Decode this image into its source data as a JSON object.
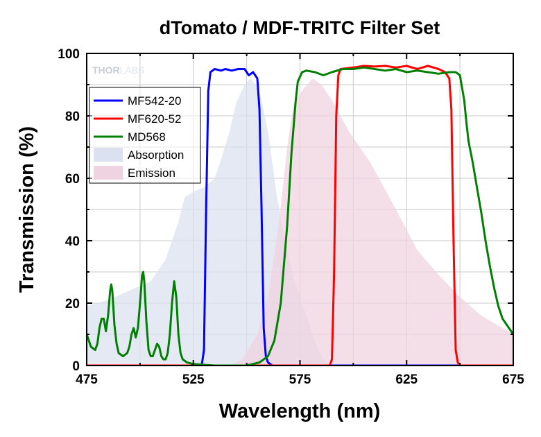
{
  "brand": {
    "thor": "THOR",
    "labs": "LABS"
  },
  "chart_data": {
    "type": "line",
    "title": "dTomato / MDF-TRITC Filter Set",
    "xlabel": "Wavelength (nm)",
    "ylabel": "Transmission (%)",
    "xlim": [
      475,
      675
    ],
    "ylim": [
      0,
      100
    ],
    "xticks": [
      475,
      525,
      575,
      625,
      675
    ],
    "yticks": [
      0,
      20,
      40,
      60,
      80,
      100
    ],
    "grid": true,
    "legend_position": "upper-left",
    "colors": {
      "MF542-20": "#0000ff",
      "MF620-52": "#ff0000",
      "MD568": "#008000",
      "Absorption": "#dbe1f0",
      "Emission": "#f0d3e0"
    },
    "series": [
      {
        "name": "Absorption",
        "kind": "area",
        "points": [
          [
            475,
            19
          ],
          [
            485,
            21
          ],
          [
            495,
            24
          ],
          [
            505,
            27
          ],
          [
            512,
            34
          ],
          [
            518,
            46
          ],
          [
            521,
            54
          ],
          [
            526,
            56
          ],
          [
            530,
            57
          ],
          [
            535,
            60
          ],
          [
            538,
            66
          ],
          [
            542,
            75
          ],
          [
            545,
            84
          ],
          [
            549,
            90
          ],
          [
            552,
            92
          ],
          [
            556,
            88
          ],
          [
            560,
            75
          ],
          [
            564,
            55
          ],
          [
            568,
            40
          ],
          [
            572,
            28
          ],
          [
            576,
            20
          ],
          [
            580,
            12
          ],
          [
            583,
            6
          ],
          [
            586,
            2
          ],
          [
            590,
            0
          ],
          [
            595,
            0
          ]
        ]
      },
      {
        "name": "Emission",
        "kind": "area",
        "points": [
          [
            542,
            0
          ],
          [
            548,
            2
          ],
          [
            555,
            10
          ],
          [
            560,
            22
          ],
          [
            565,
            45
          ],
          [
            569,
            70
          ],
          [
            572,
            84
          ],
          [
            577,
            89
          ],
          [
            581,
            92
          ],
          [
            585,
            90
          ],
          [
            590,
            85
          ],
          [
            598,
            75
          ],
          [
            608,
            65
          ],
          [
            620,
            50
          ],
          [
            630,
            37
          ],
          [
            640,
            29
          ],
          [
            650,
            22
          ],
          [
            660,
            16
          ],
          [
            670,
            12
          ],
          [
            675,
            10
          ]
        ]
      },
      {
        "name": "MF542-20",
        "kind": "line",
        "points": [
          [
            475,
            0
          ],
          [
            526,
            0
          ],
          [
            529,
            0.5
          ],
          [
            530,
            5
          ],
          [
            531,
            50
          ],
          [
            532,
            88
          ],
          [
            533,
            94
          ],
          [
            535,
            95
          ],
          [
            538,
            94.5
          ],
          [
            540,
            95
          ],
          [
            543,
            94.5
          ],
          [
            546,
            95
          ],
          [
            549,
            95
          ],
          [
            551,
            93
          ],
          [
            553,
            94
          ],
          [
            555,
            92
          ],
          [
            556,
            82
          ],
          [
            557,
            50
          ],
          [
            558,
            12
          ],
          [
            559,
            3
          ],
          [
            560,
            1
          ],
          [
            562,
            0
          ],
          [
            675,
            0
          ]
        ]
      },
      {
        "name": "MF620-52",
        "kind": "line",
        "points": [
          [
            475,
            0
          ],
          [
            589,
            0
          ],
          [
            590,
            2
          ],
          [
            591,
            30
          ],
          [
            592,
            80
          ],
          [
            593,
            93
          ],
          [
            594,
            95
          ],
          [
            600,
            95.5
          ],
          [
            605,
            96
          ],
          [
            610,
            95.8
          ],
          [
            615,
            96
          ],
          [
            620,
            95.5
          ],
          [
            625,
            96
          ],
          [
            630,
            95
          ],
          [
            635,
            96
          ],
          [
            640,
            95
          ],
          [
            643,
            94
          ],
          [
            645,
            92
          ],
          [
            646,
            82
          ],
          [
            647,
            40
          ],
          [
            648,
            5
          ],
          [
            649,
            1
          ],
          [
            650,
            0
          ],
          [
            675,
            0
          ]
        ]
      },
      {
        "name": "MD568",
        "kind": "line",
        "points": [
          [
            475,
            10
          ],
          [
            477,
            6
          ],
          [
            479,
            5
          ],
          [
            480,
            7
          ],
          [
            481,
            12
          ],
          [
            482,
            15
          ],
          [
            483,
            15
          ],
          [
            484,
            11
          ],
          [
            485,
            16
          ],
          [
            486,
            24
          ],
          [
            486.5,
            26
          ],
          [
            487,
            24
          ],
          [
            488,
            13
          ],
          [
            489,
            7
          ],
          [
            490,
            4
          ],
          [
            492,
            3
          ],
          [
            494,
            4
          ],
          [
            495,
            6
          ],
          [
            496,
            10
          ],
          [
            497,
            12
          ],
          [
            498,
            9
          ],
          [
            499,
            12
          ],
          [
            500,
            20
          ],
          [
            501,
            29
          ],
          [
            501.5,
            30
          ],
          [
            502,
            27
          ],
          [
            503,
            14
          ],
          [
            504,
            5
          ],
          [
            505,
            3
          ],
          [
            506,
            3
          ],
          [
            507,
            5
          ],
          [
            508,
            7
          ],
          [
            509,
            6
          ],
          [
            510,
            3
          ],
          [
            511,
            2
          ],
          [
            512,
            2
          ],
          [
            513,
            4
          ],
          [
            514,
            10
          ],
          [
            515,
            20
          ],
          [
            516,
            27
          ],
          [
            517,
            22
          ],
          [
            518,
            10
          ],
          [
            519,
            4
          ],
          [
            520,
            2
          ],
          [
            522,
            1
          ],
          [
            525,
            0.5
          ],
          [
            535,
            0
          ],
          [
            550,
            0
          ],
          [
            556,
            1
          ],
          [
            560,
            3
          ],
          [
            563,
            8
          ],
          [
            566,
            20
          ],
          [
            569,
            45
          ],
          [
            571,
            68
          ],
          [
            573,
            85
          ],
          [
            574,
            91
          ],
          [
            576,
            94
          ],
          [
            578,
            94.5
          ],
          [
            582,
            94
          ],
          [
            586,
            93
          ],
          [
            590,
            94
          ],
          [
            595,
            95
          ],
          [
            600,
            95
          ],
          [
            605,
            95.5
          ],
          [
            610,
            95
          ],
          [
            615,
            94.5
          ],
          [
            620,
            95
          ],
          [
            625,
            94
          ],
          [
            630,
            94.5
          ],
          [
            635,
            94
          ],
          [
            640,
            93.5
          ],
          [
            645,
            94
          ],
          [
            648,
            94
          ],
          [
            650,
            93
          ],
          [
            652,
            85
          ],
          [
            653,
            78
          ],
          [
            654,
            72
          ],
          [
            656,
            65
          ],
          [
            658,
            57
          ],
          [
            660,
            49
          ],
          [
            662,
            40
          ],
          [
            664,
            32
          ],
          [
            666,
            25
          ],
          [
            668,
            19
          ],
          [
            670,
            15
          ],
          [
            672,
            13
          ],
          [
            674,
            11
          ],
          [
            675,
            10
          ]
        ]
      }
    ]
  }
}
